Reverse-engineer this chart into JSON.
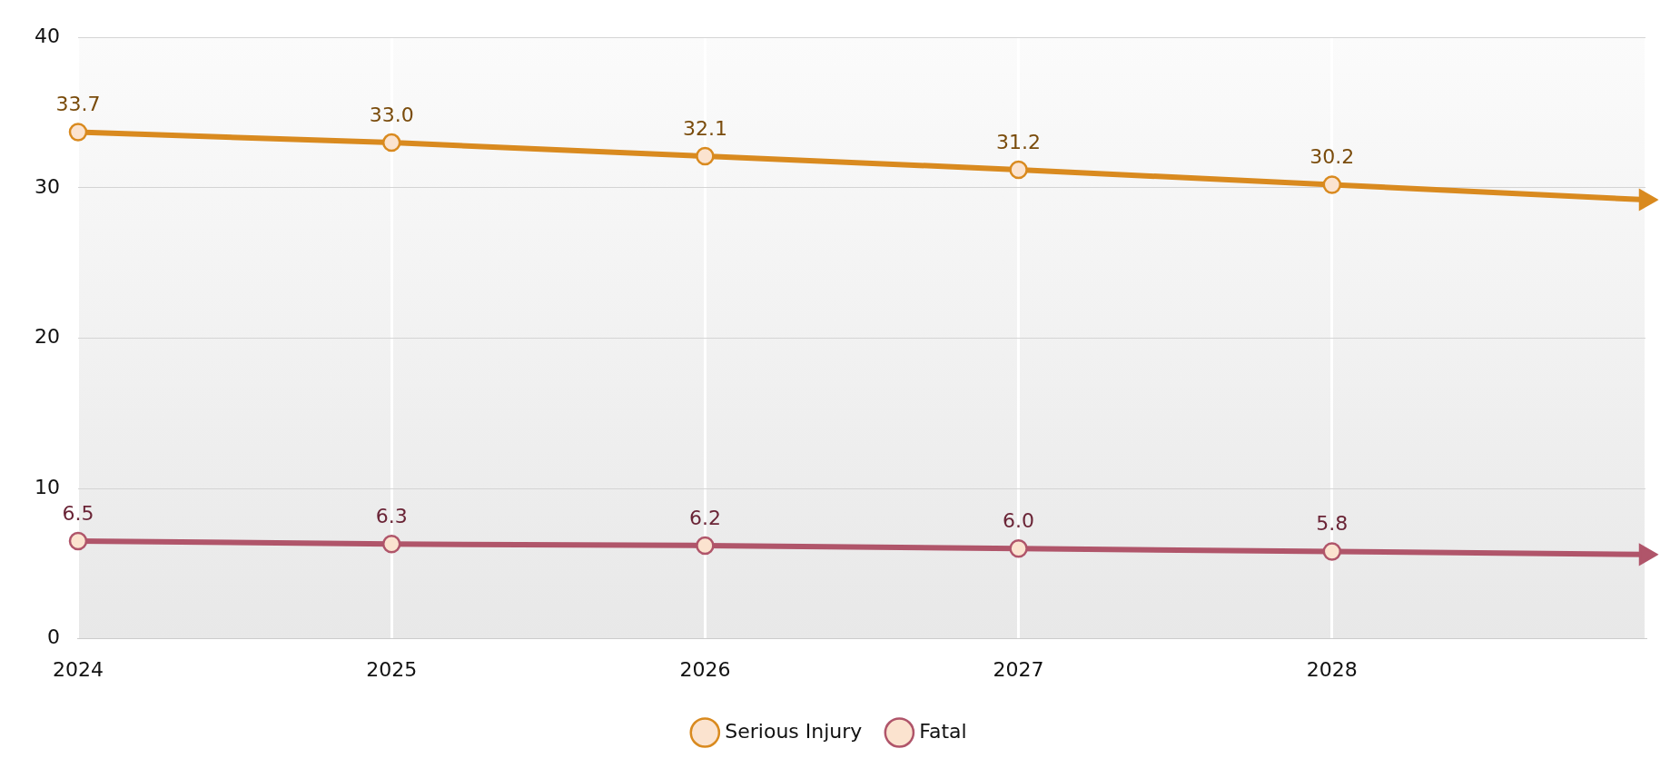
{
  "chart_data": {
    "type": "line",
    "categories": [
      "2024",
      "2025",
      "2026",
      "2027",
      "2028",
      null
    ],
    "series": [
      {
        "name": "Serious Injury",
        "color": "#d98a1f",
        "values": [
          33.7,
          33.0,
          32.1,
          31.2,
          30.2,
          29.2
        ],
        "value_labels": [
          "33.7",
          "33.0",
          "32.1",
          "31.2",
          "30.2",
          null
        ]
      },
      {
        "name": "Fatal",
        "color": "#b0556a",
        "values": [
          6.5,
          6.3,
          6.2,
          6.0,
          5.8,
          5.6
        ],
        "value_labels": [
          "6.5",
          "6.3",
          "6.2",
          "6.0",
          "5.8",
          null
        ]
      }
    ],
    "ylim": [
      0,
      40
    ],
    "yticks": [
      0,
      10,
      20,
      30,
      40
    ],
    "grid": true,
    "legend": "bottom",
    "marker": "circle",
    "line_style": "solid"
  }
}
